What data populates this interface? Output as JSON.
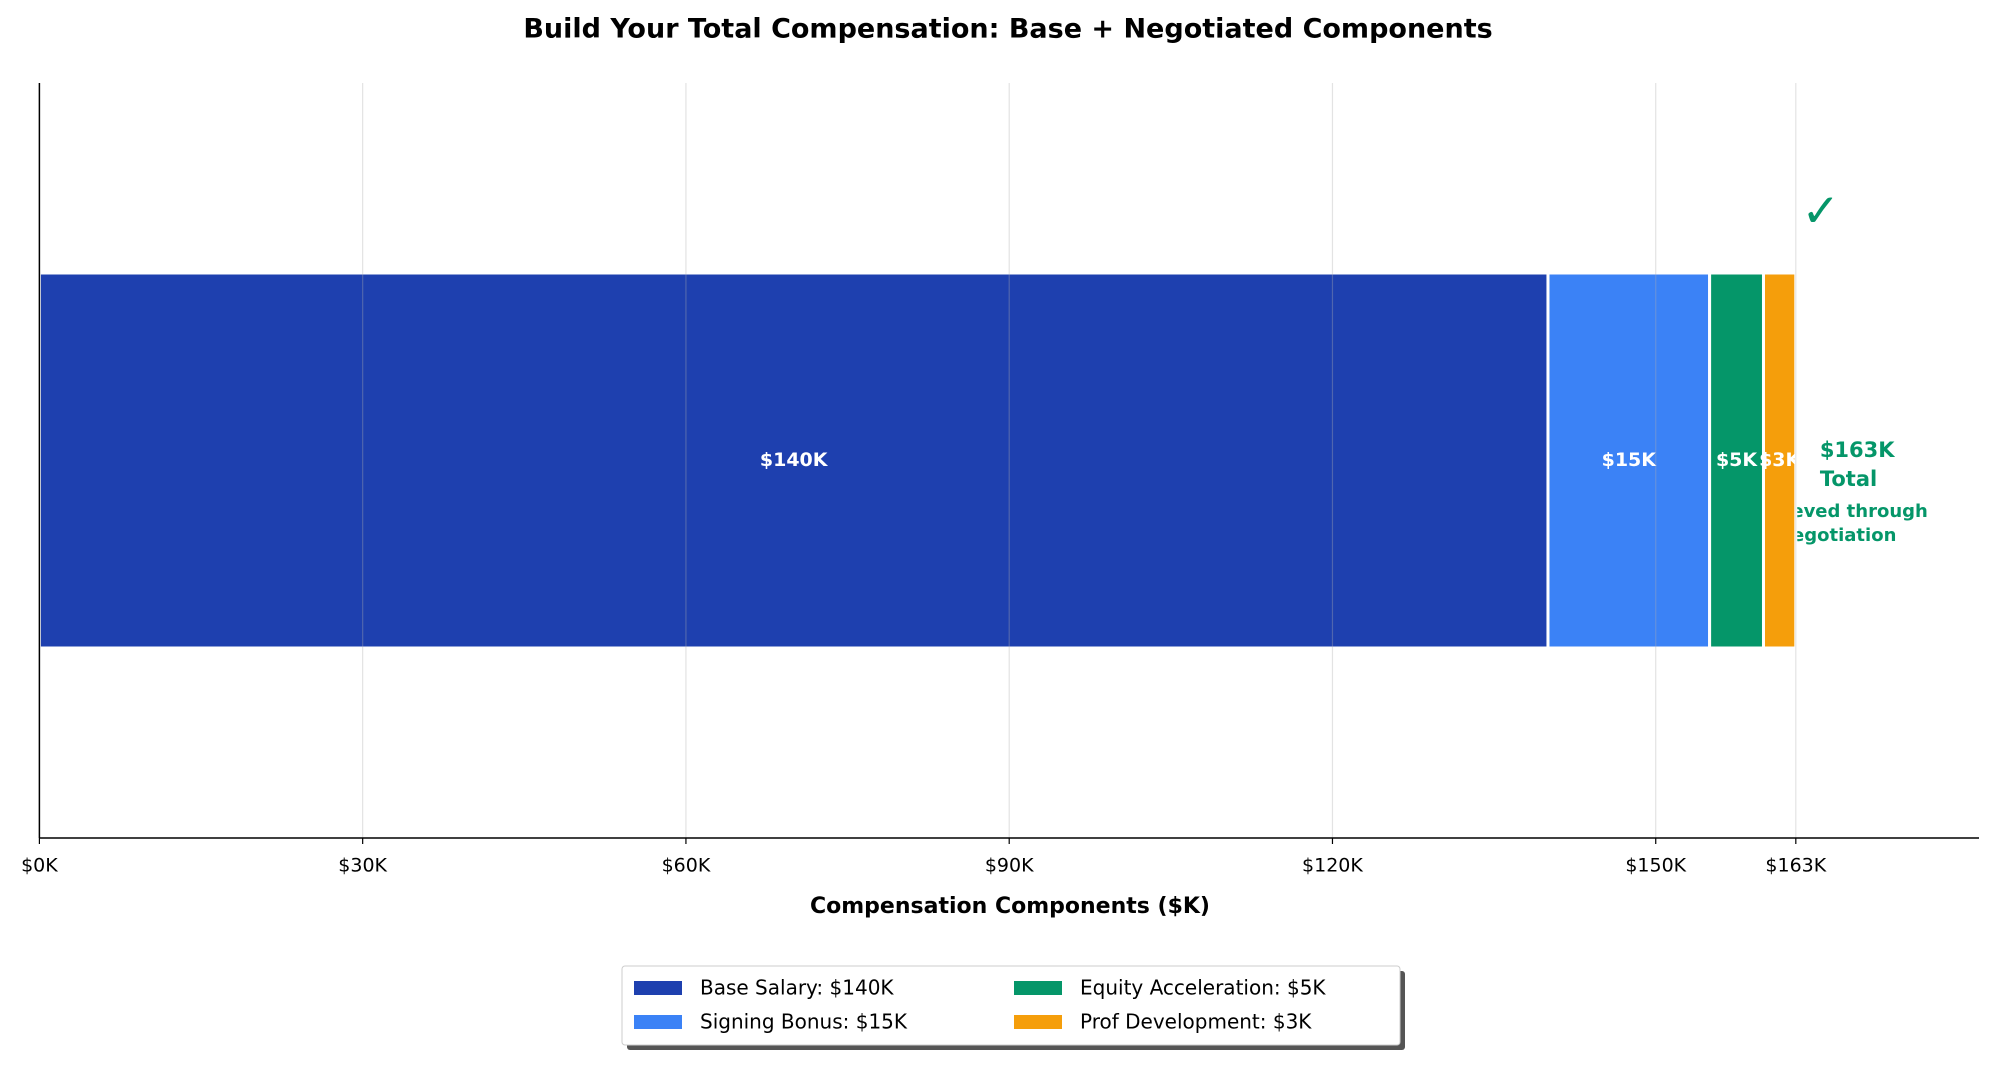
{
  "chart_data": {
    "type": "stacked-barh",
    "title": "Build Your Total Compensation: Base + Negotiated Components",
    "xlabel": "Compensation Components ($K)",
    "series": [
      {
        "name": "Base Salary: $140K",
        "color": "#1e40af",
        "values": [
          140
        ],
        "value_labels": [
          "$140K"
        ]
      },
      {
        "name": "Signing Bonus: $15K",
        "color": "#3b82f6",
        "values": [
          15
        ],
        "value_labels": [
          "$15K"
        ]
      },
      {
        "name": "Equity Acceleration: $5K",
        "color": "#059669",
        "values": [
          5
        ],
        "value_labels": [
          "$5K"
        ]
      },
      {
        "name": "Prof Development: $3K",
        "color": "#f59e0b",
        "values": [
          3
        ],
        "value_labels": [
          "$3K"
        ]
      }
    ],
    "xlim": [
      0,
      180
    ],
    "xticks": [
      {
        "value": 0,
        "label": "$0K"
      },
      {
        "value": 30,
        "label": "$30K"
      },
      {
        "value": 60,
        "label": "$60K"
      },
      {
        "value": 90,
        "label": "$90K"
      },
      {
        "value": 120,
        "label": "$120K"
      },
      {
        "value": 150,
        "label": "$150K"
      },
      {
        "value": 163,
        "label": "$163K"
      }
    ],
    "grid": true,
    "legend": "lower center",
    "annotations": {
      "check": "✓",
      "total": [
        "$163K",
        "Total"
      ],
      "note": [
        "Achieved through",
        "negotiation"
      ],
      "color": "#059669"
    }
  }
}
